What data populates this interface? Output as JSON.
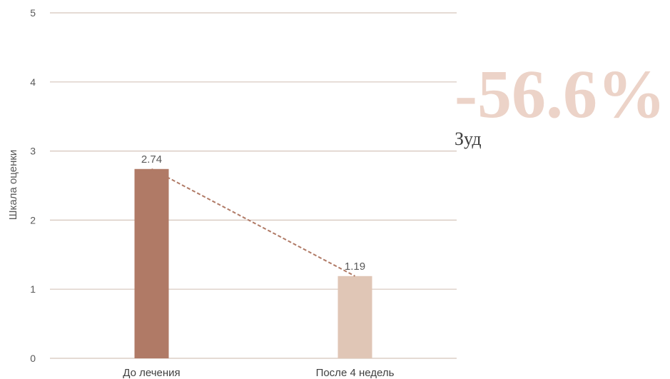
{
  "chart_data": {
    "type": "bar",
    "categories": [
      "До лечения",
      "После 4 недель"
    ],
    "values": [
      2.74,
      1.19
    ],
    "value_labels": [
      "2.74",
      "1.19"
    ],
    "bar_colors": [
      "#b07a66",
      "#e0c6b6"
    ],
    "ylabel": "Шкала оценки",
    "xlabel": "",
    "ylim": [
      0,
      5
    ],
    "yticks": [
      "0",
      "1",
      "2",
      "3",
      "4",
      "5"
    ],
    "grid": true,
    "trend_line": {
      "style": "dashed",
      "color": "#b07a66"
    }
  },
  "highlight": {
    "change": "-56.6%",
    "label": "Зуд",
    "color": "#ecd3c8"
  },
  "colors": {
    "grid": "#d5c5bb"
  }
}
